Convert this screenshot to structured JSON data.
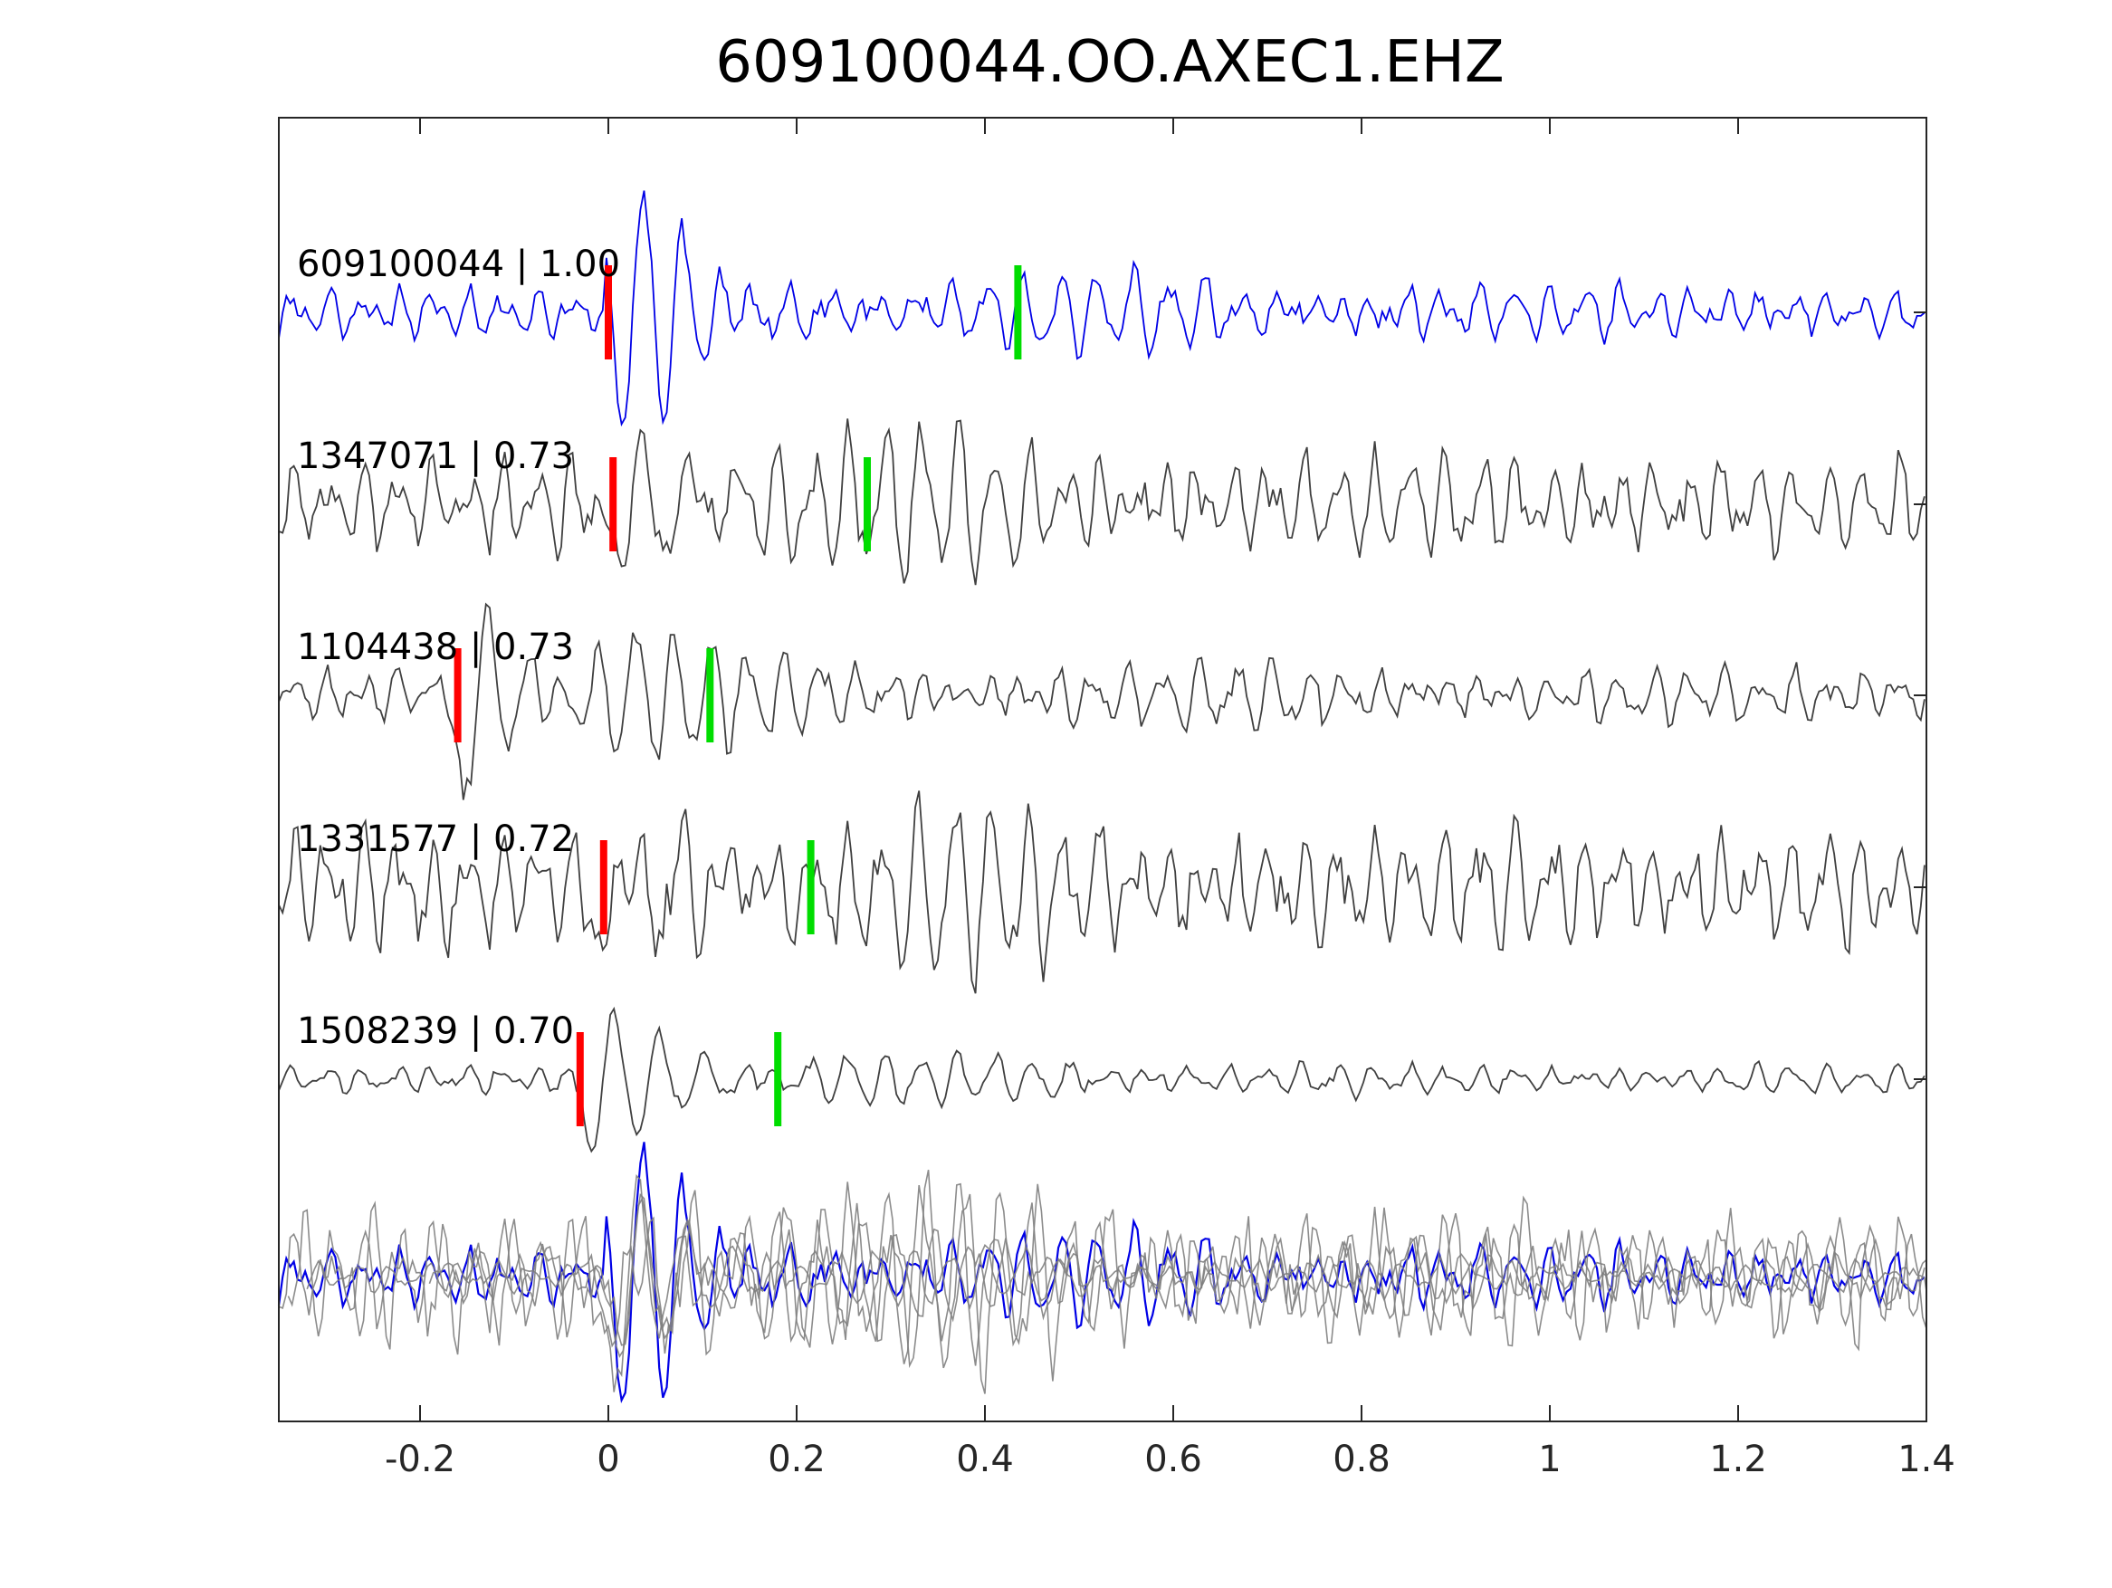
{
  "chart_data": {
    "type": "line",
    "title": "609100044.OO.AXEC1.EHZ",
    "xlabel": "",
    "ylabel": "",
    "xlim": [
      -0.35,
      1.4
    ],
    "x_ticks": [
      "-0.2",
      "0",
      "0.2",
      "0.4",
      "0.6",
      "0.8",
      "1",
      "1.2",
      "1.4"
    ],
    "x_tick_values": [
      -0.2,
      0,
      0.2,
      0.4,
      0.6,
      0.8,
      1,
      1.2,
      1.4
    ],
    "y_ticks": "none",
    "grid": false,
    "legend": "none",
    "traces": [
      {
        "name": "609100044",
        "cc": "1.00",
        "label": "609100044 | 1.00",
        "color": "#0000e6",
        "p_pick": 0.0,
        "s_pick": 0.435,
        "noise": 0.3,
        "arrival": 0.0,
        "coda_amp": 0.75
      },
      {
        "name": "1347071",
        "cc": "0.73",
        "label": "1347071 | 0.73",
        "color": "#404040",
        "p_pick": 0.005,
        "s_pick": 0.275,
        "noise": 0.55,
        "arrival": 0.0,
        "coda_amp": 0.8
      },
      {
        "name": "1104438",
        "cc": "0.73",
        "label": "1104438 | 0.73",
        "color": "#404040",
        "p_pick": -0.16,
        "s_pick": 0.108,
        "noise": 0.3,
        "arrival": -0.16,
        "coda_amp": 0.75
      },
      {
        "name": "1331577",
        "cc": "0.72",
        "label": "1331577 | 0.72",
        "color": "#404040",
        "p_pick": -0.005,
        "s_pick": 0.215,
        "noise": 0.7,
        "arrival": -0.01,
        "coda_amp": 0.95
      },
      {
        "name": "1508239",
        "cc": "0.70",
        "label": "1508239 | 0.70",
        "color": "#404040",
        "p_pick": -0.03,
        "s_pick": 0.18,
        "noise": 0.15,
        "arrival": -0.03,
        "coda_amp": 0.45
      }
    ],
    "stack": {
      "overlay_color": "#808080",
      "master_color": "#0000e6"
    },
    "pick_colors": {
      "p": "#ff0000",
      "s": "#00dd00"
    }
  }
}
